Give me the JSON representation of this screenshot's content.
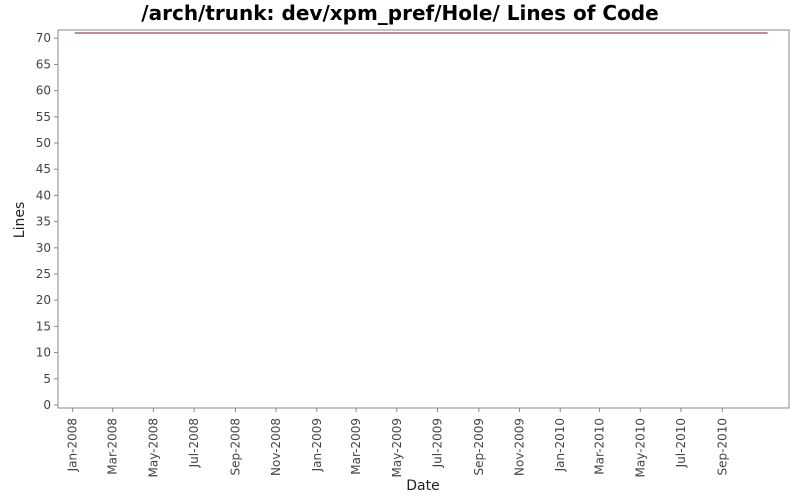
{
  "chart_data": {
    "type": "line",
    "title": "/arch/trunk: dev/xpm_pref/Hole/ Lines of Code",
    "xlabel": "Date",
    "ylabel": "Lines",
    "ylim": [
      0,
      71
    ],
    "xlim": [
      "2007-12-10",
      "2010-12-10"
    ],
    "y_ticks": [
      0,
      5,
      10,
      15,
      20,
      25,
      30,
      35,
      40,
      45,
      50,
      55,
      60,
      65,
      70
    ],
    "x_ticks": [
      {
        "date": "2008-01-01",
        "label": "Jan-2008"
      },
      {
        "date": "2008-03-01",
        "label": "Mar-2008"
      },
      {
        "date": "2008-05-01",
        "label": "May-2008"
      },
      {
        "date": "2008-07-01",
        "label": "Jul-2008"
      },
      {
        "date": "2008-09-01",
        "label": "Sep-2008"
      },
      {
        "date": "2008-11-01",
        "label": "Nov-2008"
      },
      {
        "date": "2009-01-01",
        "label": "Jan-2009"
      },
      {
        "date": "2009-03-01",
        "label": "Mar-2009"
      },
      {
        "date": "2009-05-01",
        "label": "May-2009"
      },
      {
        "date": "2009-07-01",
        "label": "Jul-2009"
      },
      {
        "date": "2009-09-01",
        "label": "Sep-2009"
      },
      {
        "date": "2009-11-01",
        "label": "Nov-2009"
      },
      {
        "date": "2010-01-01",
        "label": "Jan-2010"
      },
      {
        "date": "2010-03-01",
        "label": "Mar-2010"
      },
      {
        "date": "2010-05-01",
        "label": "May-2010"
      },
      {
        "date": "2010-07-01",
        "label": "Jul-2010"
      },
      {
        "date": "2010-09-01",
        "label": "Sep-2010"
      }
    ],
    "series": [
      {
        "color": "#8b1a1a",
        "points": [
          {
            "x": "2008-01-04",
            "y": 71
          },
          {
            "x": "2010-11-08",
            "y": 71
          }
        ]
      }
    ],
    "grid": false,
    "legend": "none"
  }
}
